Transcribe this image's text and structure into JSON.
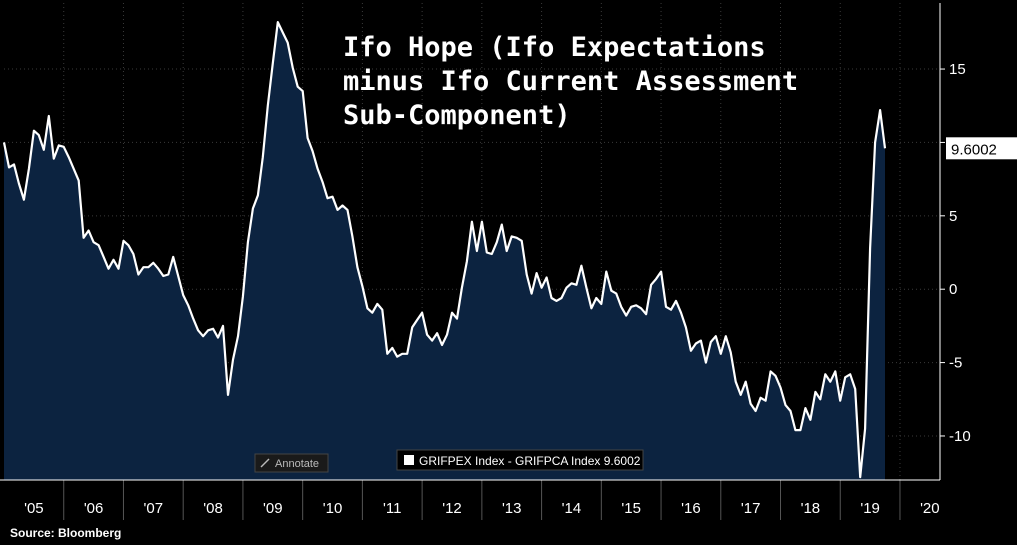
{
  "source_label": "Source: Bloomberg",
  "legend": {
    "label": "GRIFPEX Index - GRIFPCA Index 9.6002",
    "color": "#ffffff"
  },
  "annotate_label": "Annotate",
  "annotate_icon": "pencil-icon",
  "colors": {
    "background": "#000000",
    "area": "#0c2340",
    "line": "#ffffff",
    "grid": "#3a3a3a",
    "axis": "#ffffff"
  },
  "chart_data": {
    "type": "area",
    "title_lines": [
      "Ifo Hope (Ifo Expectations",
      "minus Ifo Current Assessment",
      "Sub-Component)"
    ],
    "xlabel": "",
    "ylabel": "",
    "x_start": 2005.0,
    "x_end": 2020.67,
    "ylim": [
      -13,
      19.5
    ],
    "y_ticks": [
      15,
      10,
      5,
      0,
      -5,
      -10
    ],
    "x_ticks": [
      {
        "label": "'05",
        "x": 2005.5
      },
      {
        "label": "'06",
        "x": 2006.5
      },
      {
        "label": "'07",
        "x": 2007.5
      },
      {
        "label": "'08",
        "x": 2008.5
      },
      {
        "label": "'09",
        "x": 2009.5
      },
      {
        "label": "'10",
        "x": 2010.5
      },
      {
        "label": "'11",
        "x": 2011.5
      },
      {
        "label": "'12",
        "x": 2012.5
      },
      {
        "label": "'13",
        "x": 2013.5
      },
      {
        "label": "'14",
        "x": 2014.5
      },
      {
        "label": "'15",
        "x": 2015.5
      },
      {
        "label": "'16",
        "x": 2016.5
      },
      {
        "label": "'17",
        "x": 2017.5
      },
      {
        "label": "'18",
        "x": 2018.5
      },
      {
        "label": "'19",
        "x": 2019.5
      },
      {
        "label": "'20",
        "x": 2020.5
      }
    ],
    "last_value_label": "9.6002",
    "series": [
      {
        "values": [
          10.0,
          8.3,
          8.5,
          7.2,
          6.1,
          8.2,
          10.8,
          10.5,
          9.5,
          11.8,
          8.9,
          9.8,
          9.7,
          9.0,
          8.2,
          7.4,
          3.5,
          4.0,
          3.2,
          3.0,
          2.2,
          1.4,
          2.0,
          1.4,
          3.3,
          3.0,
          2.4,
          1.0,
          1.5,
          1.5,
          1.8,
          1.4,
          0.9,
          1.0,
          2.2,
          0.9,
          -0.4,
          -1.1,
          -2.0,
          -2.8,
          -3.2,
          -2.8,
          -2.7,
          -3.3,
          -2.5,
          -7.2,
          -4.8,
          -3.2,
          -0.5,
          3.2,
          5.5,
          6.4,
          9.0,
          12.5,
          15.4,
          18.2,
          17.5,
          16.8,
          15.1,
          13.8,
          13.5,
          10.3,
          9.4,
          8.2,
          7.3,
          6.2,
          6.3,
          5.4,
          5.7,
          5.4,
          3.6,
          1.5,
          0.2,
          -1.3,
          -1.6,
          -1.0,
          -1.4,
          -4.4,
          -4.0,
          -4.6,
          -4.4,
          -4.4,
          -2.6,
          -2.1,
          -1.6,
          -3.1,
          -3.5,
          -3.0,
          -3.8,
          -3.1,
          -1.6,
          -2.0,
          0.1,
          1.9,
          4.6,
          2.6,
          4.6,
          2.5,
          2.4,
          3.2,
          4.4,
          2.6,
          3.6,
          3.5,
          3.3,
          1.0,
          -0.3,
          1.1,
          0.1,
          0.8,
          -0.6,
          -0.8,
          -0.6,
          0.1,
          0.4,
          0.3,
          1.6,
          0.1,
          -1.3,
          -0.6,
          -1.0,
          1.2,
          -0.1,
          -0.3,
          -1.2,
          -1.8,
          -1.2,
          -1.1,
          -1.3,
          -1.7,
          0.3,
          0.7,
          1.2,
          -1.2,
          -1.4,
          -0.8,
          -1.6,
          -2.6,
          -4.2,
          -3.7,
          -3.5,
          -5.0,
          -3.6,
          -3.2,
          -4.4,
          -3.2,
          -4.3,
          -6.3,
          -7.2,
          -6.3,
          -7.8,
          -8.3,
          -7.4,
          -7.6,
          -5.6,
          -5.9,
          -6.7,
          -7.9,
          -8.3,
          -9.6,
          -9.6,
          -8.1,
          -8.9,
          -7.0,
          -7.5,
          -5.8,
          -6.3,
          -5.6,
          -7.6,
          -6.0,
          -5.8,
          -6.8,
          -12.8,
          -9.5,
          2.8,
          10.0,
          12.2,
          9.6
        ]
      }
    ]
  }
}
